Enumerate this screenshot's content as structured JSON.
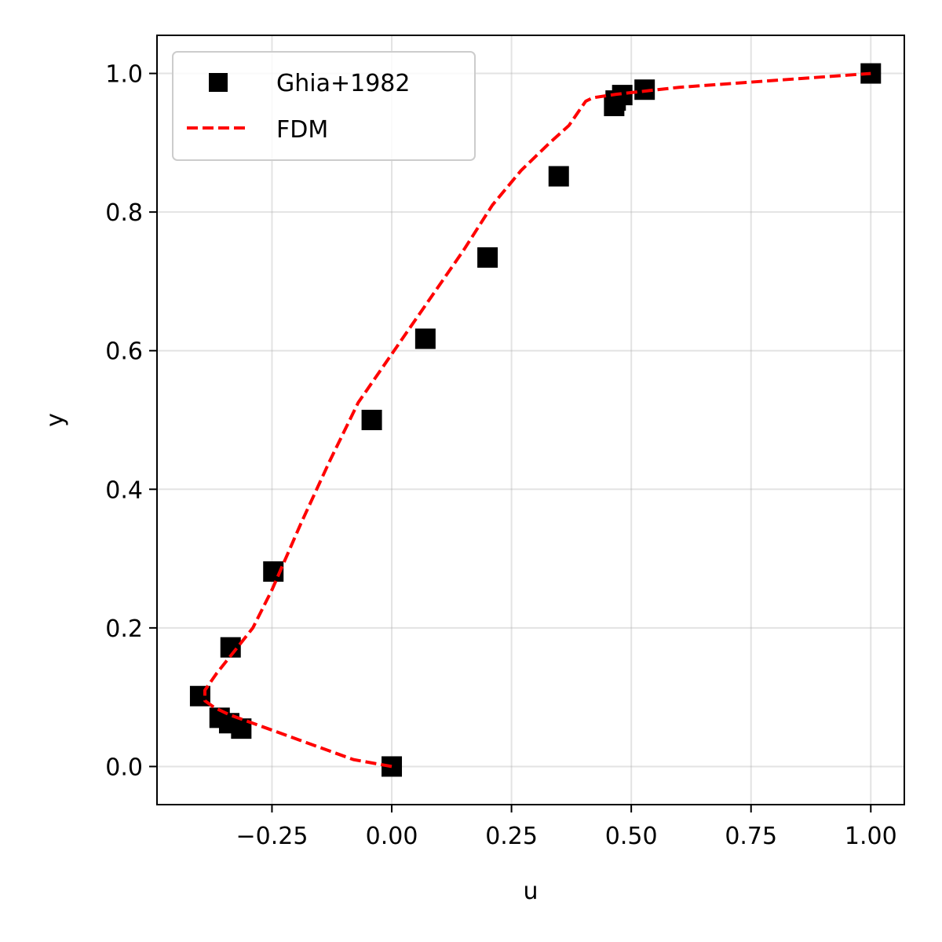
{
  "chart_data": {
    "type": "scatter",
    "title": "",
    "xlabel": "u",
    "ylabel": "y",
    "xlim": [
      -0.49,
      1.07
    ],
    "ylim": [
      -0.055,
      1.055
    ],
    "grid": true,
    "legend_position": "top-left",
    "x_ticks": [
      -0.25,
      0.0,
      0.25,
      0.5,
      0.75,
      1.0
    ],
    "x_tick_labels": [
      "−0.25",
      "0.00",
      "0.25",
      "0.50",
      "0.75",
      "1.00"
    ],
    "y_ticks": [
      0.0,
      0.2,
      0.4,
      0.6,
      0.8,
      1.0
    ],
    "y_tick_labels": [
      "0.0",
      "0.2",
      "0.4",
      "0.6",
      "0.8",
      "1.0"
    ],
    "series": [
      {
        "name": "Ghia+1982",
        "kind": "scatter",
        "marker": "square",
        "color": "#000000",
        "x": [
          0.0,
          -0.3141,
          -0.3393,
          -0.3593,
          -0.4,
          -0.3364,
          -0.2471,
          -0.0417,
          0.0702,
          0.2,
          0.3486,
          0.4643,
          0.4674,
          0.4812,
          0.5279,
          1.0
        ],
        "y": [
          0.0,
          0.0547,
          0.0625,
          0.0703,
          0.1016,
          0.1719,
          0.2813,
          0.5,
          0.6172,
          0.7344,
          0.8516,
          0.9531,
          0.9609,
          0.9688,
          0.9766,
          1.0
        ]
      },
      {
        "name": "FDM",
        "kind": "line",
        "style": "dashed",
        "color": "#ff0000",
        "x": [
          0.0,
          -0.08,
          -0.16,
          -0.24,
          -0.3,
          -0.34,
          -0.37,
          -0.39,
          -0.39,
          -0.365,
          -0.33,
          -0.29,
          -0.25,
          -0.19,
          -0.13,
          -0.07,
          -0.02,
          0.03,
          0.09,
          0.15,
          0.21,
          0.27,
          0.33,
          0.37,
          0.39,
          0.4,
          0.405,
          0.42,
          0.47,
          0.6,
          0.8,
          1.0
        ],
        "y": [
          0.0,
          0.01,
          0.03,
          0.05,
          0.065,
          0.075,
          0.085,
          0.095,
          0.11,
          0.135,
          0.165,
          0.2,
          0.255,
          0.35,
          0.44,
          0.525,
          0.575,
          0.625,
          0.685,
          0.745,
          0.81,
          0.86,
          0.9,
          0.925,
          0.945,
          0.955,
          0.96,
          0.965,
          0.97,
          0.98,
          0.99,
          1.0
        ]
      }
    ]
  }
}
